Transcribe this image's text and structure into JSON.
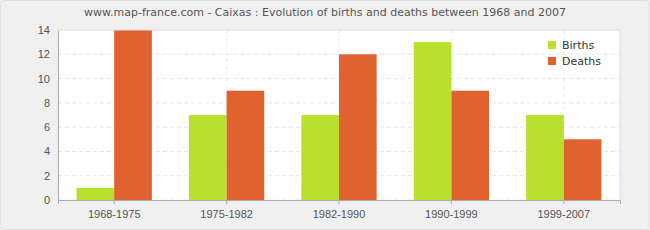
{
  "chart_data": {
    "type": "bar",
    "title": "www.map-france.com - Caixas : Evolution of births and deaths between 1968 and 2007",
    "categories": [
      "1968-1975",
      "1975-1982",
      "1982-1990",
      "1990-1999",
      "1999-2007"
    ],
    "series": [
      {
        "name": "Births",
        "color": "#b9e02d",
        "values": [
          1,
          7,
          7,
          13,
          7
        ]
      },
      {
        "name": "Deaths",
        "color": "#e0622e",
        "values": [
          14,
          9,
          12,
          9,
          5
        ]
      }
    ],
    "ylim": [
      0,
      14
    ],
    "yticks": [
      0,
      2,
      4,
      6,
      8,
      10,
      12,
      14
    ],
    "grid": true,
    "legend": "top-right"
  }
}
